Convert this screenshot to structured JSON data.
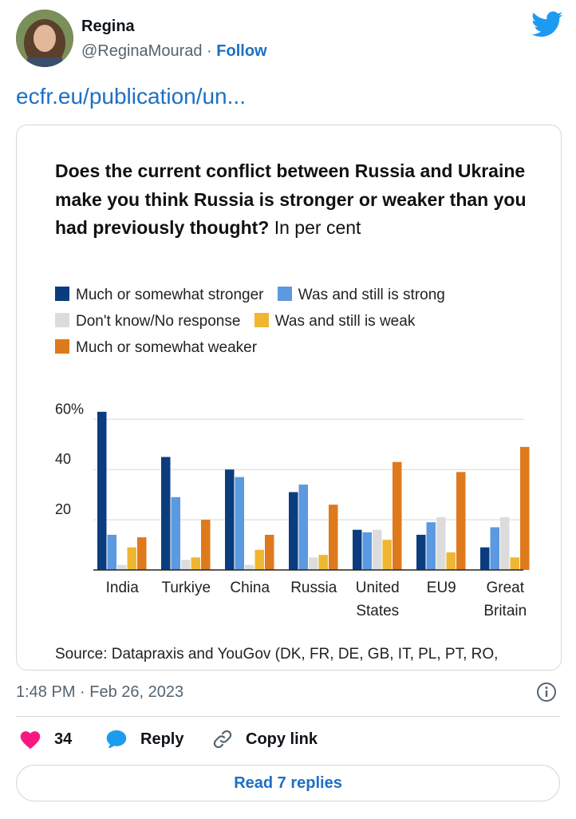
{
  "author": {
    "name": "Regina",
    "handle": "@ReginaMourad",
    "separator": " · ",
    "follow_label": "Follow"
  },
  "tweet": {
    "link_text": "ecfr.eu/publication/un...",
    "timestamp": "1:48 PM · Feb 26, 2023",
    "likes": "34",
    "reply_label": "Reply",
    "copy_link_label": "Copy link",
    "read_replies_label": "Read 7 replies"
  },
  "colors": {
    "like": "#f91880",
    "link": "#1d6fc4",
    "twitter_blue": "#1d9bf0",
    "much_stronger": "#0b3d7e",
    "still_strong": "#5b99e0",
    "dont_know": "#dcdcdc",
    "still_weak": "#f0b632",
    "much_weaker": "#de7a1c"
  },
  "icons": {
    "bird": "twitter-bird-icon",
    "info": "info-icon",
    "heart": "heart-icon",
    "reply": "reply-bubble-icon",
    "link": "link-icon"
  },
  "chart_data": {
    "type": "bar",
    "title_bold": "Does the current conflict between Russia and Ukraine make you think Russia is stronger or weaker than you had previously thought?",
    "title_rest": " In per cent",
    "categories": [
      [
        "India"
      ],
      [
        "Turkiye"
      ],
      [
        "China"
      ],
      [
        "Russia"
      ],
      [
        "United",
        "States"
      ],
      [
        "EU9"
      ],
      [
        "Great",
        "Britain"
      ]
    ],
    "yticks": [
      "60%",
      "40",
      "20"
    ],
    "ytick_values": [
      60,
      40,
      20
    ],
    "ylim": [
      0,
      62
    ],
    "series": [
      {
        "name": "Much or somewhat stronger",
        "color": "#0b3d7e",
        "values": [
          63,
          45,
          40,
          31,
          16,
          14,
          9
        ]
      },
      {
        "name": "Was and still is strong",
        "color": "#5b99e0",
        "values": [
          14,
          29,
          37,
          34,
          15,
          19,
          17
        ]
      },
      {
        "name": "Don't know/No response",
        "color": "#dcdcdc",
        "values": [
          2,
          4,
          2,
          5,
          16,
          21,
          21
        ]
      },
      {
        "name": "Was and still is weak",
        "color": "#f0b632",
        "values": [
          9,
          5,
          8,
          6,
          12,
          7,
          5
        ]
      },
      {
        "name": "Much or somewhat weaker",
        "color": "#de7a1c",
        "values": [
          13,
          20,
          14,
          26,
          43,
          39,
          49
        ]
      }
    ],
    "source": "Source: Datapraxis and YouGov (DK, FR, DE, GB, IT, PL, PT, RO,"
  }
}
